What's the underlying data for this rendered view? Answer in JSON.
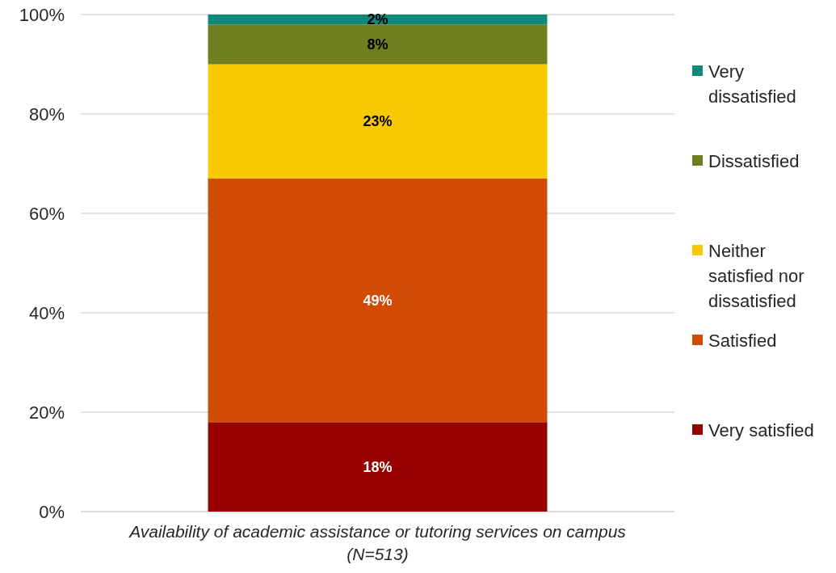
{
  "chart_data": {
    "type": "bar",
    "stacked": true,
    "categories": [
      "Availability of academic assistance or tutoring services on campus (N=513)"
    ],
    "series": [
      {
        "name": "Very satisfied",
        "color": "#990000",
        "values": [
          18
        ],
        "value_labels": [
          "18%"
        ]
      },
      {
        "name": "Satisfied",
        "color": "#d24b04",
        "values": [
          49
        ],
        "value_labels": [
          "49%"
        ]
      },
      {
        "name": "Neither satisfied nor dissatisfied",
        "color": "#f8c800",
        "values": [
          23
        ],
        "value_labels": [
          "23%"
        ]
      },
      {
        "name": "Dissatisfied",
        "color": "#6f7f1f",
        "values": [
          8
        ],
        "value_labels": [
          "8%"
        ]
      },
      {
        "name": "Very dissatisfied",
        "color": "#0f8a7a",
        "values": [
          2
        ],
        "value_labels": [
          "2%"
        ]
      }
    ],
    "ylim": [
      0,
      100
    ],
    "yticks": [
      {
        "value": 0,
        "label": "0%"
      },
      {
        "value": 20,
        "label": "20%"
      },
      {
        "value": 40,
        "label": "40%"
      },
      {
        "value": 60,
        "label": "60%"
      },
      {
        "value": 80,
        "label": "80%"
      },
      {
        "value": 100,
        "label": "100%"
      }
    ],
    "grid": "y",
    "legend": "right"
  }
}
